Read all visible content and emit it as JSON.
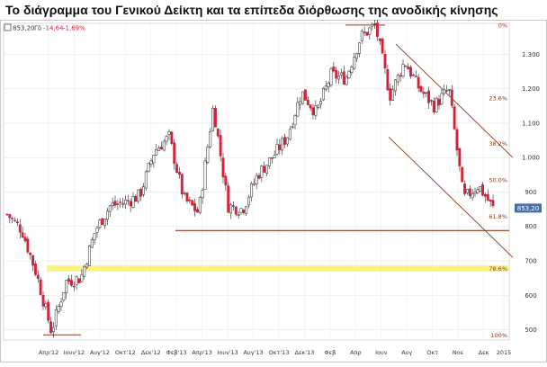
{
  "title": "Το διάγραμμα του Γενικού Δείκτη και τα επίπεδα διόρθωσης της ανοδικής κίνησης",
  "legend": {
    "value": "853,20",
    "unit": "Γδ",
    "change": "-14,64",
    "change_pct": "-1,69%"
  },
  "chart_data": {
    "type": "candlestick",
    "title": "Το διάγραμμα του Γενικού Δείκτη και τα επίπεδα διόρθωσης της ανοδικής κίνησης",
    "x_ticks": [
      "Απρ'12",
      "Ιουν'12",
      "Αυγ'12",
      "Οκτ'12",
      "Δεκ'12",
      "Φεβ'13",
      "Απρ'13",
      "Ιουν'13",
      "Αυγ'13",
      "Οκτ'13",
      "Δεκ'13",
      "Φεβ",
      "Απρ",
      "Ιουν",
      "Αυγ",
      "Οκτ",
      "Νοε",
      "Δεκ",
      "2015"
    ],
    "y_ticks": [
      500,
      600,
      700,
      800,
      900,
      1000,
      1100,
      1200,
      1300
    ],
    "y_tick_labels": [
      "500",
      "600",
      "700",
      "800",
      "900",
      "1.000",
      "1.100",
      "1.200",
      "1.300"
    ],
    "ylim": [
      470,
      1390
    ],
    "last_value": 853.2,
    "last_value_label": "853,20",
    "fib_levels": [
      {
        "label": "0%",
        "value": 1385
      },
      {
        "label": "23.6%",
        "value": 1173
      },
      {
        "label": "38.2%",
        "value": 1041
      },
      {
        "label": "50.0%",
        "value": 935
      },
      {
        "label": "61.8%",
        "value": 829
      },
      {
        "label": "78.6%",
        "value": 678
      },
      {
        "label": "100%",
        "value": 485
      }
    ],
    "support_line": {
      "from": "Φεβ'13",
      "value": 788
    },
    "highlight_zone": {
      "value": 678
    },
    "trend_points": [
      [
        "Μαρ'12",
        835
      ],
      [
        "Απρ'12",
        790
      ],
      [
        "Μαϊ'12",
        660
      ],
      [
        "Ιουν'12",
        495
      ],
      [
        "Ιουλ'12",
        640
      ],
      [
        "Αυγ'12",
        650
      ],
      [
        "Σεπ'12",
        790
      ],
      [
        "Οκτ'12",
        860
      ],
      [
        "Νοε'12",
        870
      ],
      [
        "Δεκ'12",
        890
      ],
      [
        "Ιαν'13",
        1020
      ],
      [
        "Φεβ'13",
        1060
      ],
      [
        "Μαρ'13",
        880
      ],
      [
        "Απρ'13",
        840
      ],
      [
        "Μαϊ'13",
        1150
      ],
      [
        "Ιουν'13",
        860
      ],
      [
        "Ιουλ'13",
        850
      ],
      [
        "Αυγ'13",
        950
      ],
      [
        "Σεπ'13",
        1000
      ],
      [
        "Οκτ'13",
        1060
      ],
      [
        "Νοε'13",
        1190
      ],
      [
        "Δεκ'13",
        1130
      ],
      [
        "Ιαν'14",
        1240
      ],
      [
        "Φεβ'14",
        1230
      ],
      [
        "Μαρ'14",
        1350
      ],
      [
        "Απρ'14",
        1385
      ],
      [
        "Μαϊ'14",
        1180
      ],
      [
        "Ιουν'14",
        1280
      ],
      [
        "Ιουλ'14",
        1200
      ],
      [
        "Αυγ'14",
        1150
      ],
      [
        "Σεπ'14",
        1200
      ],
      [
        "Οκτ'14",
        880
      ],
      [
        "Νοε'14",
        920
      ],
      [
        "Δεκ'14",
        853
      ]
    ]
  },
  "colors": {
    "up": "#ffffff",
    "down": "#d4223a",
    "wick": "#222222",
    "fib": "#8b3a1e",
    "support": "#8b3a1e",
    "highlight": "#f7f36a",
    "label_bg": "#4a6fa5"
  }
}
